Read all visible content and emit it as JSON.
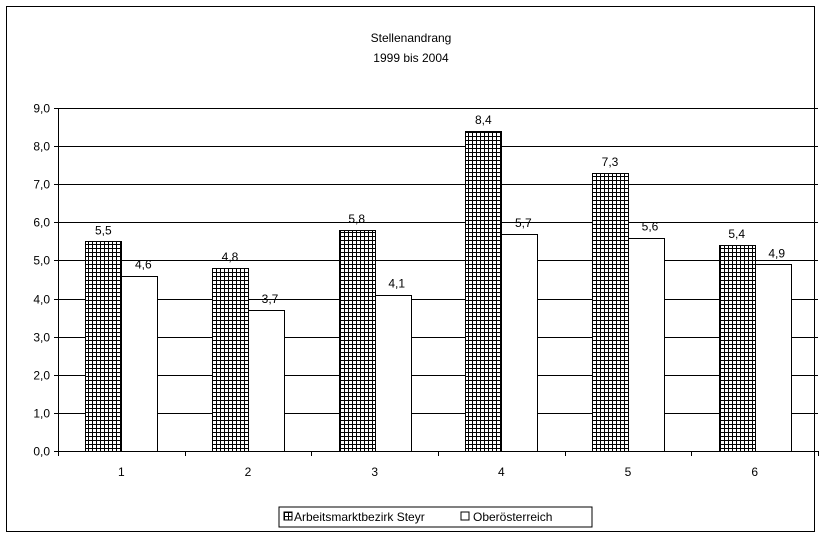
{
  "chart_data": {
    "type": "bar",
    "title": "Stellenandrang",
    "subtitle": "1999 bis 2004",
    "categories": [
      "1",
      "2",
      "3",
      "4",
      "5",
      "6"
    ],
    "series": [
      {
        "name": "Arbeitsmarktbezirk Steyr",
        "values": [
          5.5,
          4.8,
          5.8,
          8.4,
          7.3,
          5.4
        ],
        "pattern": "crosshatch"
      },
      {
        "name": "Oberösterreich",
        "values": [
          4.6,
          3.7,
          4.1,
          5.7,
          5.6,
          4.9
        ],
        "pattern": "solid-white"
      }
    ],
    "data_labels": [
      [
        "5,5",
        "4,8",
        "5,8",
        "8,4",
        "7,3",
        "5,4"
      ],
      [
        "4,6",
        "3,7",
        "4,1",
        "5,7",
        "5,6",
        "4,9"
      ]
    ],
    "ylim": [
      0,
      9
    ],
    "yticks": [
      0,
      1,
      2,
      3,
      4,
      5,
      6,
      7,
      8,
      9
    ],
    "ytick_labels": [
      "0,0",
      "1,0",
      "2,0",
      "3,0",
      "4,0",
      "5,0",
      "6,0",
      "7,0",
      "8,0",
      "9,0"
    ],
    "xlabel": "",
    "ylabel": "",
    "grid": true,
    "legend_position": "bottom",
    "colors": {
      "bar_fill": "#ffffff",
      "hatch_line": "#000000",
      "grid": "#000000"
    }
  }
}
